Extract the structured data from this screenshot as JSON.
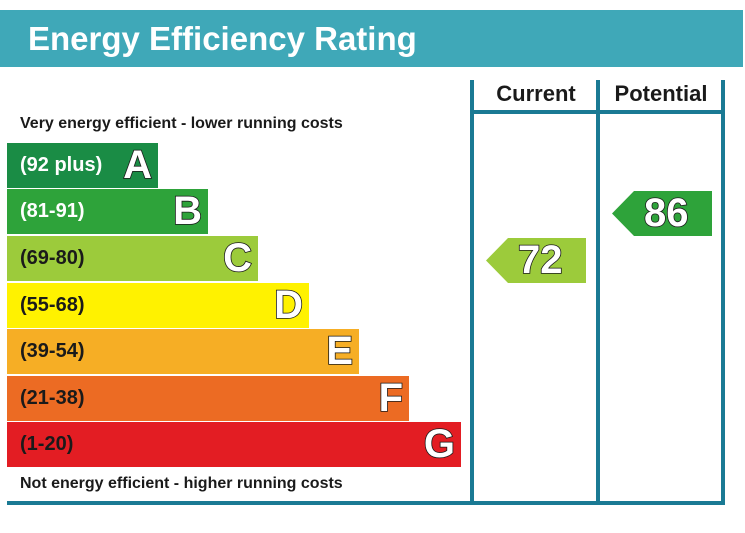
{
  "title": "Energy Efficiency Rating",
  "columns": {
    "current": "Current",
    "potential": "Potential"
  },
  "captions": {
    "top": "Very energy efficient - lower running costs",
    "bottom": "Not energy efficient - higher running costs"
  },
  "chart_data": {
    "type": "bar",
    "title": "Energy Efficiency Rating",
    "categories": [
      "A",
      "B",
      "C",
      "D",
      "E",
      "F",
      "G"
    ],
    "bands": [
      {
        "letter": "A",
        "range": "(92 plus)",
        "color": "#1a8c45",
        "text_color": "#ffffff"
      },
      {
        "letter": "B",
        "range": "(81-91)",
        "color": "#2ea33a",
        "text_color": "#ffffff"
      },
      {
        "letter": "C",
        "range": "(69-80)",
        "color": "#9ccb3b",
        "text_color": "#1a1a1a"
      },
      {
        "letter": "D",
        "range": "(55-68)",
        "color": "#fff200",
        "text_color": "#1a1a1a"
      },
      {
        "letter": "E",
        "range": "(39-54)",
        "color": "#f6ae25",
        "text_color": "#1a1a1a"
      },
      {
        "letter": "F",
        "range": "(21-38)",
        "color": "#ec6b23",
        "text_color": "#1a1a1a"
      },
      {
        "letter": "G",
        "range": "(1-20)",
        "color": "#e31d23",
        "text_color": "#1a1a1a"
      }
    ],
    "ratings": [
      {
        "column": "Current",
        "value": "72",
        "band": "C",
        "color": "#9ccb3b"
      },
      {
        "column": "Potential",
        "value": "86",
        "band": "B",
        "color": "#2ea33a"
      }
    ]
  }
}
